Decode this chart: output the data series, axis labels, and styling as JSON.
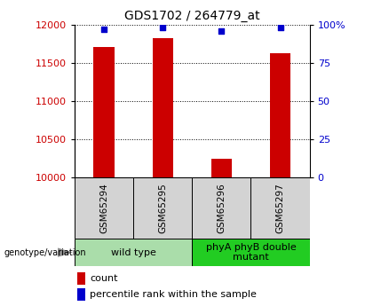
{
  "title": "GDS1702 / 264779_at",
  "samples": [
    "GSM65294",
    "GSM65295",
    "GSM65296",
    "GSM65297"
  ],
  "counts": [
    11700,
    11820,
    10250,
    11620
  ],
  "percentiles": [
    97,
    98,
    96,
    98
  ],
  "ylim_left": [
    10000,
    12000
  ],
  "ylim_right": [
    0,
    100
  ],
  "yticks_left": [
    10000,
    10500,
    11000,
    11500,
    12000
  ],
  "yticks_right": [
    0,
    25,
    50,
    75,
    100
  ],
  "ytick_labels_right": [
    "0",
    "25",
    "50",
    "75",
    "100%"
  ],
  "bar_color": "#CC0000",
  "marker_color": "#0000CC",
  "bar_width": 0.35,
  "groups": [
    {
      "label": "wild type",
      "indices": [
        0,
        1
      ],
      "color": "#AADDAA"
    },
    {
      "label": "phyA phyB double\nmutant",
      "indices": [
        2,
        3
      ],
      "color": "#22CC22"
    }
  ],
  "group_label_prefix": "genotype/variation",
  "legend_count_label": "count",
  "legend_percentile_label": "percentile rank within the sample",
  "title_fontsize": 10,
  "tick_fontsize": 8,
  "sample_label_fontsize": 7.5,
  "group_label_fontsize": 8,
  "legend_fontsize": 8
}
